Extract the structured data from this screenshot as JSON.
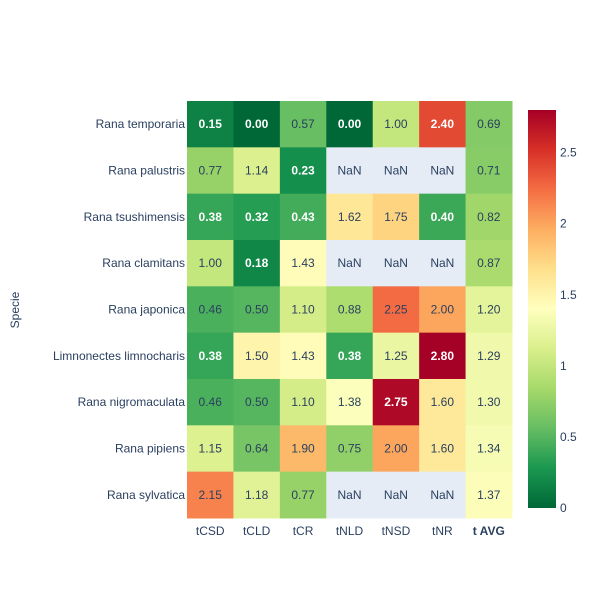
{
  "chart_data": {
    "type": "heatmap",
    "ylabel": "Specie",
    "x_categories": [
      "tCSD",
      "tCLD",
      "tCR",
      "tNLD",
      "tNSD",
      "tNR",
      "t AVG"
    ],
    "x_bold": [
      false,
      false,
      false,
      false,
      false,
      false,
      true
    ],
    "y_categories": [
      "Rana temporaria",
      "Rana palustris",
      "Rana tsushimensis",
      "Rana clamitans",
      "Rana japonica",
      "Limnonectes limnocharis",
      "Rana nigromaculata",
      "Rana pipiens",
      "Rana sylvatica"
    ],
    "values": [
      [
        0.15,
        0.0,
        0.57,
        0.0,
        1.0,
        2.4,
        0.69
      ],
      [
        0.77,
        1.14,
        0.23,
        null,
        null,
        null,
        0.71
      ],
      [
        0.38,
        0.32,
        0.43,
        1.62,
        1.75,
        0.4,
        0.82
      ],
      [
        1.0,
        0.18,
        1.43,
        null,
        null,
        null,
        0.87
      ],
      [
        0.46,
        0.5,
        1.1,
        0.88,
        2.25,
        2.0,
        1.2
      ],
      [
        0.38,
        1.5,
        1.43,
        0.38,
        1.25,
        2.8,
        1.29
      ],
      [
        0.46,
        0.5,
        1.1,
        1.38,
        2.75,
        1.6,
        1.3
      ],
      [
        1.15,
        0.64,
        1.9,
        0.75,
        2.0,
        1.6,
        1.34
      ],
      [
        2.15,
        1.18,
        0.77,
        null,
        null,
        null,
        1.37
      ]
    ],
    "labels": [
      [
        "0.15",
        "0.00",
        "0.57",
        "0.00",
        "1.00",
        "2.40",
        "0.69"
      ],
      [
        "0.77",
        "1.14",
        "0.23",
        "NaN",
        "NaN",
        "NaN",
        "0.71"
      ],
      [
        "0.38",
        "0.32",
        "0.43",
        "1.62",
        "1.75",
        "0.40",
        "0.82"
      ],
      [
        "1.00",
        "0.18",
        "1.43",
        "NaN",
        "NaN",
        "NaN",
        "0.87"
      ],
      [
        "0.46",
        "0.50",
        "1.10",
        "0.88",
        "2.25",
        "2.00",
        "1.20"
      ],
      [
        "0.38",
        "1.50",
        "1.43",
        "0.38",
        "1.25",
        "2.80",
        "1.29"
      ],
      [
        "0.46",
        "0.50",
        "1.10",
        "1.38",
        "2.75",
        "1.60",
        "1.30"
      ],
      [
        "1.15",
        "0.64",
        "1.90",
        "0.75",
        "2.00",
        "1.60",
        "1.34"
      ],
      [
        "2.15",
        "1.18",
        "0.77",
        "NaN",
        "NaN",
        "NaN",
        "1.37"
      ]
    ],
    "colorscale": "RdYlGn-reversed",
    "zrange": [
      0,
      2.8
    ],
    "colorbar_ticks": [
      "0",
      "0.5",
      "1",
      "1.5",
      "2",
      "2.5"
    ],
    "colorbar_tick_values": [
      0,
      0.5,
      1,
      1.5,
      2,
      2.5
    ],
    "nan_color": "#e5ecf6",
    "text_color_dark": "#2a3f5f",
    "text_color_light": "#ffffff"
  }
}
